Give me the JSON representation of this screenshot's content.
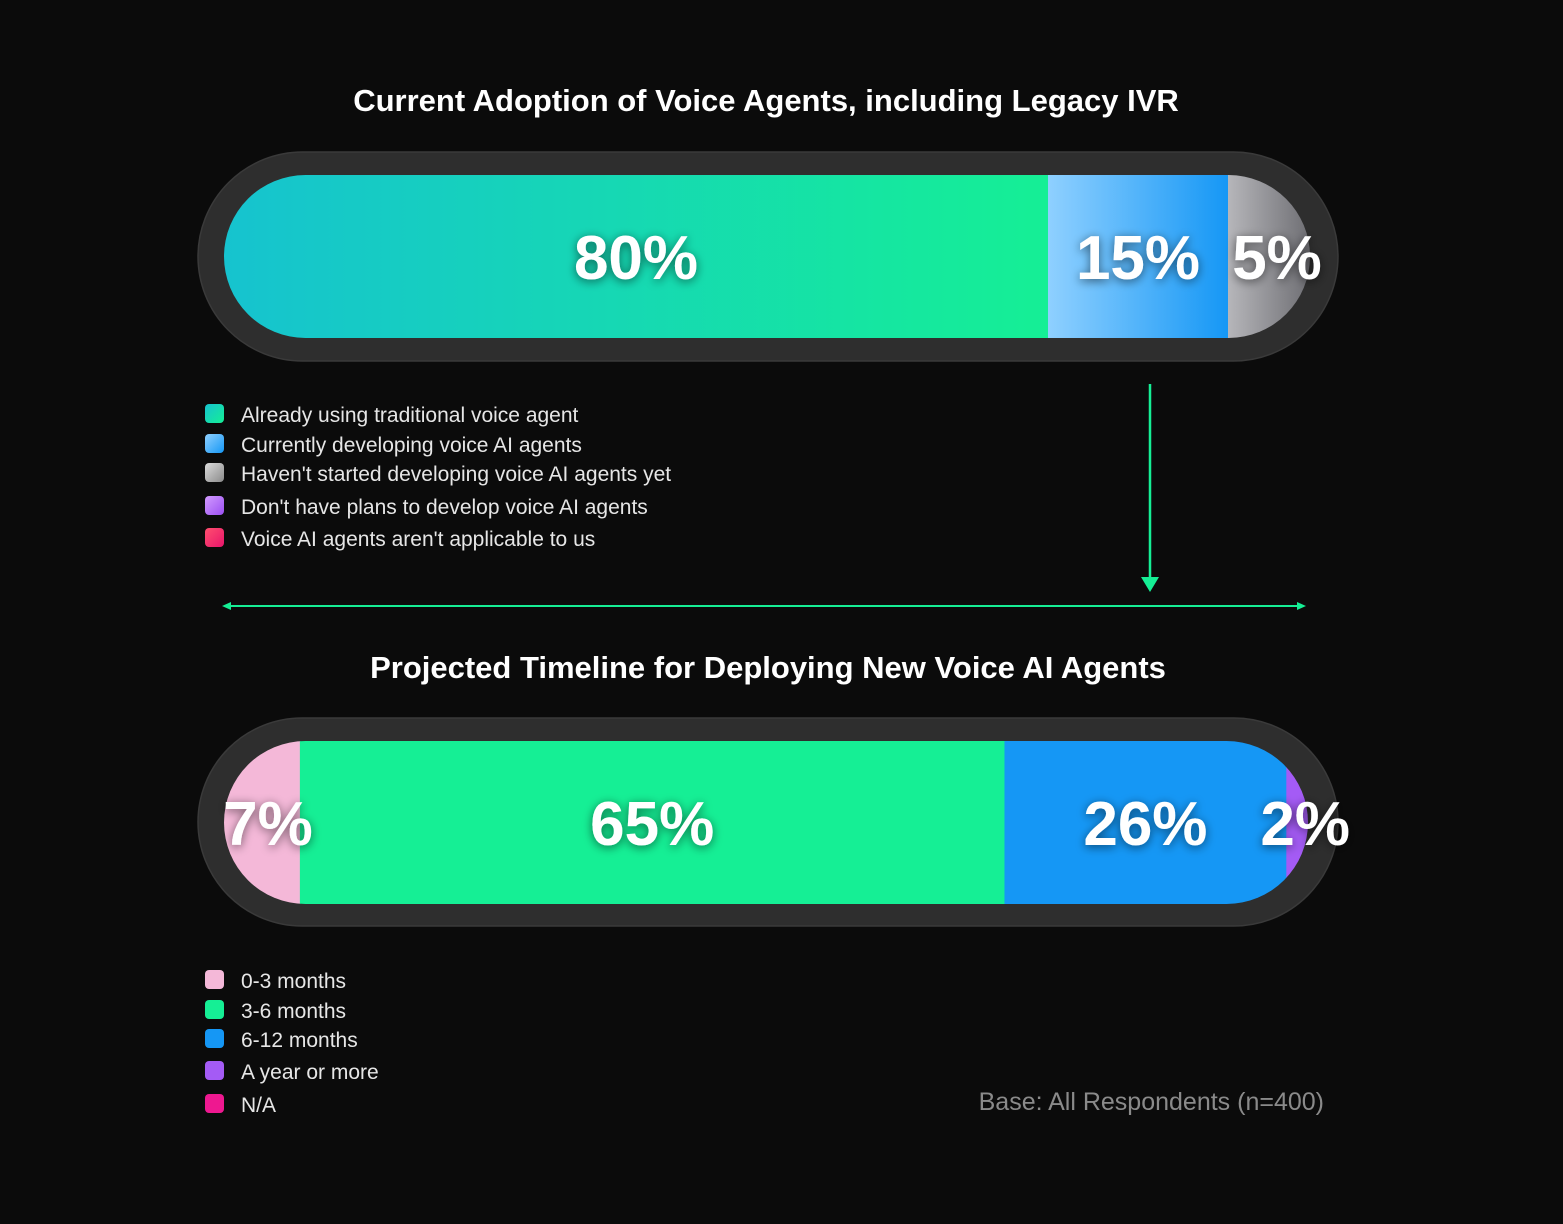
{
  "chart_data": [
    {
      "type": "bar",
      "orientation": "horizontal-stacked",
      "title": "Current Adoption of Voice Agents, including Legacy IVR",
      "unit": "%",
      "segments": [
        {
          "name": "Already using traditional voice agent",
          "value": 80,
          "label": "80%",
          "color": "#1dd8a6",
          "gradient": [
            "#16c3cf",
            "#15ef95"
          ]
        },
        {
          "name": "Currently developing voice AI agents",
          "value": 15,
          "label": "15%",
          "color": "#3aa6f8",
          "gradient": [
            "#8fd0ff",
            "#1597f5"
          ]
        },
        {
          "name": "Haven't started developing voice AI agents yet",
          "value": 5,
          "label": "5%",
          "color": "#8e8e93",
          "gradient": [
            "#b6b6ba",
            "#6e6e73"
          ]
        }
      ],
      "legend": [
        {
          "label": "Already using traditional voice agent",
          "gradient": [
            "#16c3cf",
            "#15ef95"
          ]
        },
        {
          "label": "Currently developing voice AI agents",
          "gradient": [
            "#8fd0ff",
            "#1597f5"
          ]
        },
        {
          "label": "Haven't started developing voice AI agents yet",
          "gradient": [
            "#dcdcdc",
            "#8a8a8a"
          ]
        },
        {
          "label": "Don't have plans to develop voice AI agents",
          "gradient": [
            "#d29bff",
            "#9b4ff2"
          ]
        },
        {
          "label": "Voice AI agents aren't applicable to us",
          "gradient": [
            "#ff4f6f",
            "#e8156b"
          ]
        }
      ],
      "legend_placement": "bottom-left"
    },
    {
      "type": "bar",
      "orientation": "horizontal-stacked",
      "title": "Projected Timeline for Deploying New Voice AI Agents",
      "unit": "%",
      "segments": [
        {
          "name": "0-3 months",
          "value": 7,
          "label": "7%",
          "color": "#f4b8d8"
        },
        {
          "name": "3-6 months",
          "value": 65,
          "label": "65%",
          "color": "#15ef95"
        },
        {
          "name": "6-12 months",
          "value": 26,
          "label": "26%",
          "color": "#1597f5"
        },
        {
          "name": "A year or more",
          "value": 2,
          "label": "2%",
          "color": "#a45bf5"
        }
      ],
      "legend": [
        {
          "label": "0-3 months",
          "gradient": [
            "#f4b8d8",
            "#f4b8d8"
          ]
        },
        {
          "label": "3-6 months",
          "gradient": [
            "#15ef95",
            "#15ef95"
          ]
        },
        {
          "label": "6-12 months",
          "gradient": [
            "#1597f5",
            "#1597f5"
          ]
        },
        {
          "label": "A year or more",
          "gradient": [
            "#a45bf5",
            "#a45bf5"
          ]
        },
        {
          "label": "N/A",
          "gradient": [
            "#ee1890",
            "#ee1890"
          ]
        }
      ],
      "legend_placement": "bottom-left"
    }
  ],
  "footnote": "Base: All Respondents (n=400)",
  "colors": {
    "background": "#0b0b0b",
    "track": "#2e2e2e",
    "accent_connector": "#15ef95"
  }
}
